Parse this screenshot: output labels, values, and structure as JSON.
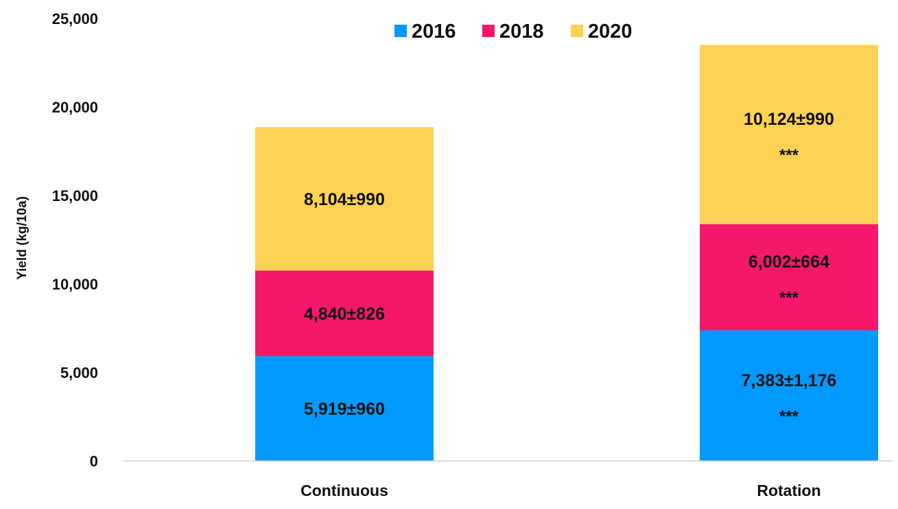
{
  "chart_data": {
    "type": "bar",
    "stacked": true,
    "title": "",
    "xlabel": "",
    "ylabel": "Yield (kg/10a)",
    "ylim": [
      0,
      25000
    ],
    "yticks": [
      0,
      5000,
      10000,
      15000,
      20000,
      25000
    ],
    "ytick_labels": [
      "0",
      "5,000",
      "10,000",
      "15,000",
      "20,000",
      "25,000"
    ],
    "grid": false,
    "legend": "top-center",
    "categories": [
      "Continuous",
      "Rotation"
    ],
    "series": [
      {
        "name": "2016",
        "color": "#0099ff",
        "values": [
          5919,
          7383
        ],
        "labels": [
          "5,919±960",
          "7,383±1,176"
        ],
        "significance": [
          "",
          "***"
        ]
      },
      {
        "name": "2018",
        "color": "#f5176a",
        "values": [
          4840,
          6002
        ],
        "labels": [
          "4,840±826",
          "6,002±664"
        ],
        "significance": [
          "",
          "***"
        ]
      },
      {
        "name": "2020",
        "color": "#fcd256",
        "values": [
          8104,
          10124
        ],
        "labels": [
          "8,104±990",
          "10,124±990"
        ],
        "significance": [
          "",
          "***"
        ]
      }
    ]
  }
}
